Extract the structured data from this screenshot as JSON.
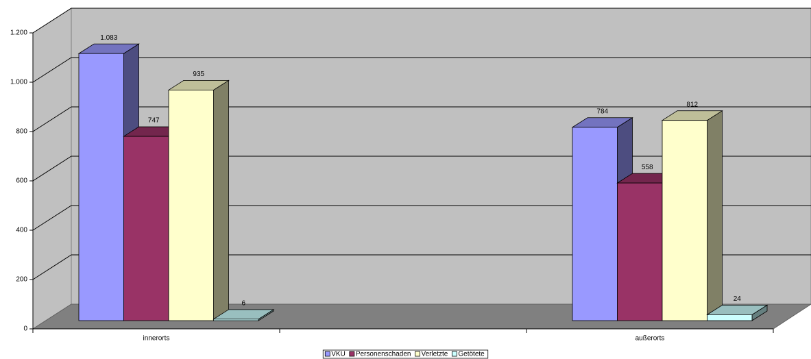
{
  "chart_data": {
    "type": "bar3d",
    "categories": [
      "innerorts",
      null,
      "außerorts"
    ],
    "series": [
      {
        "name": "VKU",
        "color": "#9999ff",
        "values": [
          1083,
          null,
          784
        ],
        "value_labels": [
          "1.083",
          null,
          "784"
        ]
      },
      {
        "name": "Personenschaden",
        "color": "#993366",
        "values": [
          747,
          null,
          558
        ]
      },
      {
        "name": "Verletzte",
        "color": "#ffffcc",
        "values": [
          935,
          null,
          812
        ]
      },
      {
        "name": "Getötete",
        "color": "#ccffff",
        "values": [
          6,
          null,
          24
        ]
      }
    ],
    "ylim": [
      0,
      1200
    ],
    "yticks": [
      0,
      200,
      400,
      600,
      800,
      {
        "value": 1000,
        "label": "1.000"
      },
      {
        "value": 1200,
        "label": "1.200"
      }
    ],
    "grid": true,
    "legend": "bottom"
  }
}
